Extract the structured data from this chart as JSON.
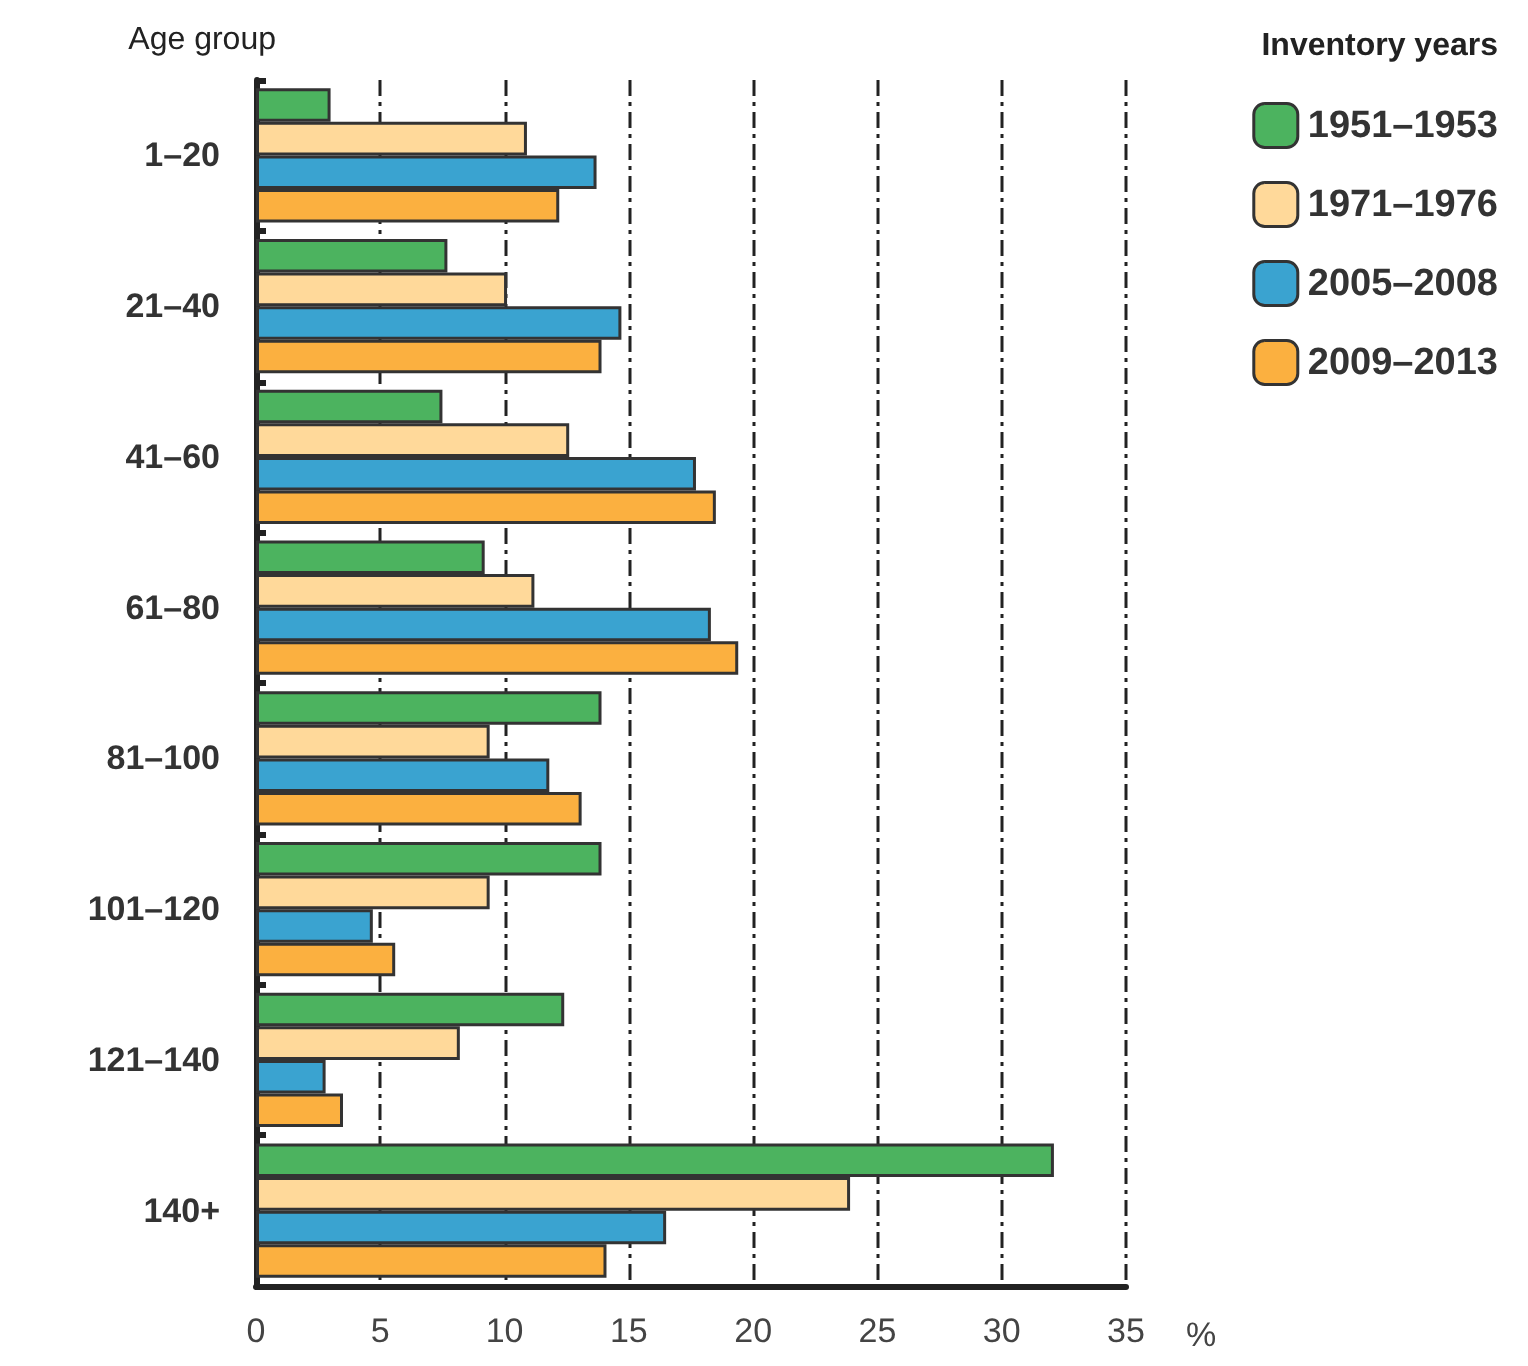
{
  "chart_data": {
    "type": "bar",
    "orientation": "horizontal",
    "ylabel": "Age group",
    "xlabel": "%",
    "legend_title": "Inventory years",
    "legend": "top right",
    "grid": "x",
    "categories": [
      "1–20",
      "21–40",
      "41–60",
      "61–80",
      "81–100",
      "101–120",
      "121–140",
      "140+"
    ],
    "xlim": [
      0,
      35
    ],
    "xticks": [
      0,
      5,
      10,
      15,
      20,
      25,
      30,
      35
    ],
    "series": [
      {
        "name": "1951–1953",
        "color": "#4cb35f",
        "values": [
          3.0,
          7.7,
          7.5,
          9.2,
          13.9,
          13.9,
          12.4,
          32.1
        ]
      },
      {
        "name": "1971–1976",
        "color": "#ffd99a",
        "values": [
          10.9,
          10.1,
          12.6,
          11.2,
          9.4,
          9.4,
          8.2,
          23.9
        ]
      },
      {
        "name": "2005–2008",
        "color": "#3aa3d0",
        "values": [
          13.7,
          14.7,
          17.7,
          18.3,
          11.8,
          4.7,
          2.8,
          16.5
        ]
      },
      {
        "name": "2009–2013",
        "color": "#fbb040",
        "values": [
          12.2,
          13.9,
          18.5,
          19.4,
          13.1,
          5.6,
          3.5,
          14.1
        ]
      }
    ]
  }
}
